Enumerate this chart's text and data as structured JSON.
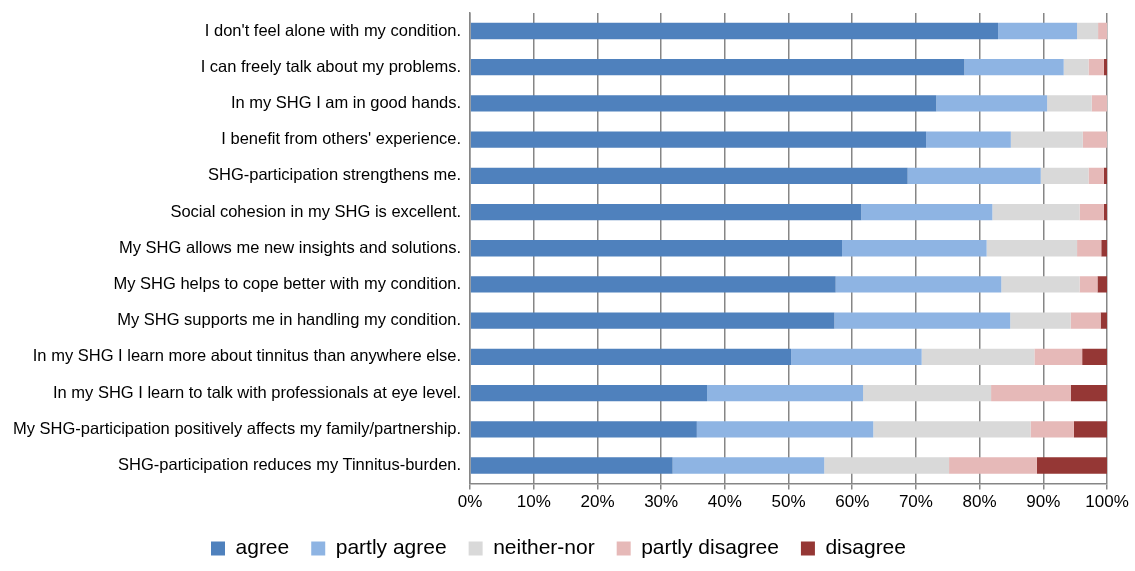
{
  "chart_data": {
    "type": "bar",
    "orientation": "horizontal",
    "stacked": true,
    "categories": [
      "I don't feel alone with my condition.",
      "I can freely talk about my problems.",
      "In my SHG I am in good hands.",
      "I benefit from others' experience.",
      "SHG-participation strengthens me.",
      "Social cohesion in my SHG is excellent.",
      "My SHG allows me new insights and solutions.",
      "My SHG helps to cope better with my condition.",
      "My SHG supports me in handling my condition.",
      "In my SHG I learn more about tinnitus than anywhere else.",
      "In my SHG I learn to talk with professionals at eye level.",
      "My SHG-participation positively affects my family/partnership.",
      "SHG-participation reduces my Tinnitus-burden."
    ],
    "series": [
      {
        "name": "agree",
        "color": "#4f81bd",
        "values": [
          82.9,
          77.6,
          73.2,
          71.6,
          68.7,
          61.4,
          58.4,
          57.4,
          57.2,
          50.4,
          37.2,
          35.6,
          31.8
        ]
      },
      {
        "name": "partly agree",
        "color": "#8eb4e3",
        "values": [
          12.4,
          15.6,
          17.4,
          13.3,
          20.9,
          20.6,
          22.7,
          26.0,
          27.6,
          20.5,
          24.5,
          27.7,
          23.8
        ]
      },
      {
        "name": "neither-nor",
        "color": "#d9d9d9",
        "values": [
          3.3,
          3.9,
          7.0,
          11.3,
          7.5,
          13.7,
          14.2,
          12.3,
          9.5,
          17.7,
          20.1,
          24.7,
          19.6
        ]
      },
      {
        "name": "partly disagree",
        "color": "#e6b9b8",
        "values": [
          1.4,
          2.4,
          2.4,
          3.8,
          2.4,
          3.8,
          3.8,
          2.8,
          4.7,
          7.5,
          12.5,
          6.8,
          13.8
        ]
      },
      {
        "name": "disagree",
        "color": "#953735",
        "values": [
          0,
          0.5,
          0,
          0,
          0.5,
          0.5,
          0.9,
          1.5,
          1.0,
          3.9,
          5.7,
          5.2,
          11.0
        ]
      }
    ],
    "xlim": [
      0,
      100
    ],
    "xticks": [
      {
        "value": 0,
        "label": "0%"
      },
      {
        "value": 10,
        "label": "10%"
      },
      {
        "value": 20,
        "label": "20%"
      },
      {
        "value": 30,
        "label": "30%"
      },
      {
        "value": 40,
        "label": "40%"
      },
      {
        "value": 50,
        "label": "50%"
      },
      {
        "value": 60,
        "label": "60%"
      },
      {
        "value": 70,
        "label": "70%"
      },
      {
        "value": 80,
        "label": "80%"
      },
      {
        "value": 90,
        "label": "90%"
      },
      {
        "value": 100,
        "label": "100%"
      }
    ],
    "grid": "x",
    "legend": "bottom"
  }
}
